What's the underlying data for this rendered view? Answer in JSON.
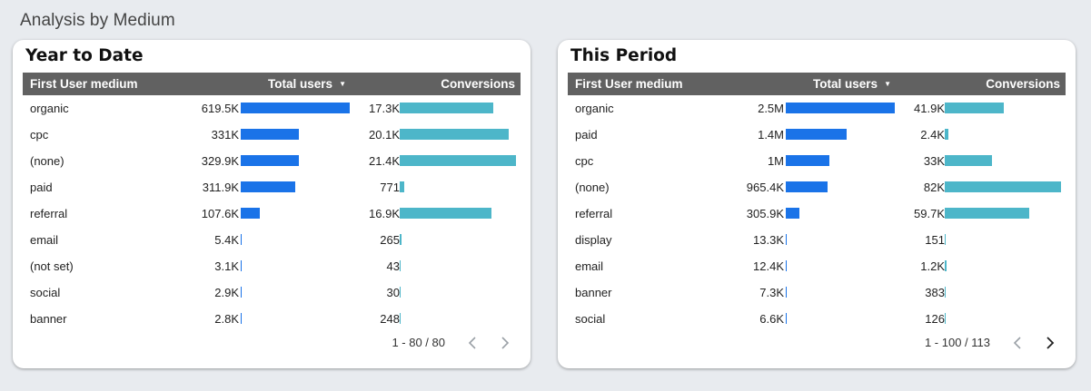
{
  "section_title": "Analysis by Medium",
  "colors": {
    "users_bar": "#1a73e8",
    "conversions_bar": "#4db6c9",
    "header_bg": "#616161"
  },
  "tables": [
    {
      "title": "Year to Date",
      "headers": {
        "medium": "First User medium",
        "users": "Total users",
        "conversions": "Conversions"
      },
      "sort_icon": "caret-down-icon",
      "max_users": 619.5,
      "max_conversions": 21.4,
      "rows": [
        {
          "medium": "organic",
          "users": "619.5K",
          "users_value": 619.5,
          "conversions": "17.3K",
          "conversions_value": 17.3
        },
        {
          "medium": "cpc",
          "users": "331K",
          "users_value": 331,
          "conversions": "20.1K",
          "conversions_value": 20.1
        },
        {
          "medium": "(none)",
          "users": "329.9K",
          "users_value": 329.9,
          "conversions": "21.4K",
          "conversions_value": 21.4
        },
        {
          "medium": "paid",
          "users": "311.9K",
          "users_value": 311.9,
          "conversions": "771",
          "conversions_value": 0.771
        },
        {
          "medium": "referral",
          "users": "107.6K",
          "users_value": 107.6,
          "conversions": "16.9K",
          "conversions_value": 16.9
        },
        {
          "medium": "email",
          "users": "5.4K",
          "users_value": 5.4,
          "conversions": "265",
          "conversions_value": 0.265
        },
        {
          "medium": "(not set)",
          "users": "3.1K",
          "users_value": 3.1,
          "conversions": "43",
          "conversions_value": 0.043
        },
        {
          "medium": "social",
          "users": "2.9K",
          "users_value": 2.9,
          "conversions": "30",
          "conversions_value": 0.03
        },
        {
          "medium": "banner",
          "users": "2.8K",
          "users_value": 2.8,
          "conversions": "248",
          "conversions_value": 0.248
        }
      ],
      "pagination": "1 - 80 / 80",
      "prev_enabled": false,
      "next_enabled": false
    },
    {
      "title": "This Period",
      "headers": {
        "medium": "First User medium",
        "users": "Total users",
        "conversions": "Conversions"
      },
      "sort_icon": "caret-down-icon",
      "max_users": 2500,
      "max_conversions": 82,
      "rows": [
        {
          "medium": "organic",
          "users": "2.5M",
          "users_value": 2500,
          "conversions": "41.9K",
          "conversions_value": 41.9
        },
        {
          "medium": "paid",
          "users": "1.4M",
          "users_value": 1400,
          "conversions": "2.4K",
          "conversions_value": 2.4
        },
        {
          "medium": "cpc",
          "users": "1M",
          "users_value": 1000,
          "conversions": "33K",
          "conversions_value": 33
        },
        {
          "medium": "(none)",
          "users": "965.4K",
          "users_value": 965.4,
          "conversions": "82K",
          "conversions_value": 82
        },
        {
          "medium": "referral",
          "users": "305.9K",
          "users_value": 305.9,
          "conversions": "59.7K",
          "conversions_value": 59.7
        },
        {
          "medium": "display",
          "users": "13.3K",
          "users_value": 13.3,
          "conversions": "151",
          "conversions_value": 0.151
        },
        {
          "medium": "email",
          "users": "12.4K",
          "users_value": 12.4,
          "conversions": "1.2K",
          "conversions_value": 1.2
        },
        {
          "medium": "banner",
          "users": "7.3K",
          "users_value": 7.3,
          "conversions": "383",
          "conversions_value": 0.383
        },
        {
          "medium": "social",
          "users": "6.6K",
          "users_value": 6.6,
          "conversions": "126",
          "conversions_value": 0.126
        }
      ],
      "pagination": "1 - 100 / 113",
      "prev_enabled": false,
      "next_enabled": true
    }
  ]
}
